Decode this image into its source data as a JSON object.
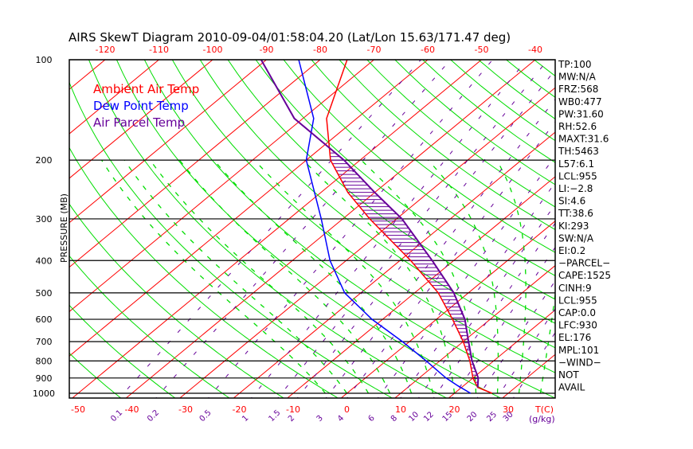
{
  "chart_data": {
    "type": "line",
    "title": "AIRS SkewT Diagram 2010-09-04/01:58:04.20 (Lat/Lon 15.63/171.47 deg)",
    "ylabel": "PRESSURE (MB)",
    "xlabel": "T(C)",
    "mixing_ratio_label": "(g/kg)",
    "pressure_ticks": [
      100,
      200,
      300,
      400,
      500,
      600,
      700,
      800,
      900,
      1000
    ],
    "top_temp_ticks": [
      -120,
      -110,
      -100,
      -90,
      -80,
      -70,
      -60,
      -50,
      -40
    ],
    "bottom_temp_ticks": [
      -50,
      -40,
      -30,
      -20,
      -10,
      0,
      10,
      20,
      30
    ],
    "mixing_ratio_ticks": [
      "0.1",
      "0.2",
      "0.5",
      "1",
      "1.5",
      "2",
      "3",
      "4",
      "6",
      "8",
      "10",
      "12",
      "15",
      "20",
      "25",
      "30"
    ],
    "ylim": [
      1000,
      100
    ],
    "legend": {
      "placement": "top-left",
      "entries": [
        {
          "name": "Ambient Air Temp",
          "color": "#ff0000"
        },
        {
          "name": "Dew Point Temp",
          "color": "#0000ff"
        },
        {
          "name": "Air Parcel Temp",
          "color": "#660099"
        }
      ]
    },
    "series": [
      {
        "name": "Ambient Air Temp",
        "color": "#ff0000",
        "p": [
          1000,
          960,
          900,
          800,
          700,
          600,
          500,
          400,
          300,
          250,
          200,
          150,
          100
        ],
        "t": [
          27,
          23,
          20,
          15.6,
          10,
          3,
          -5.6,
          -18,
          -35,
          -45,
          -55.5,
          -65.6,
          -75
        ]
      },
      {
        "name": "Dew Point Temp",
        "color": "#0000ff",
        "p": [
          1000,
          950,
          900,
          800,
          700,
          600,
          500,
          400,
          300,
          200,
          150,
          100
        ],
        "t": [
          23,
          19,
          15,
          7.5,
          -1.3,
          -12,
          -23,
          -33,
          -44,
          -60,
          -68,
          -84
        ]
      },
      {
        "name": "Air Parcel Temp",
        "color": "#660099",
        "p": [
          960,
          900,
          800,
          700,
          600,
          500,
          400,
          300,
          250,
          200,
          150,
          100
        ],
        "t": [
          23,
          21,
          16,
          11,
          5.3,
          -2.7,
          -14,
          -29,
          -40,
          -53,
          -71.6,
          -91
        ]
      }
    ]
  },
  "indices": [
    "TP:100",
    "MW:N/A",
    "FRZ:568",
    "WB0:477",
    "PW:31.60",
    "RH:52.6",
    "MAXT:31.6",
    "TH:5463",
    "L57:6.1",
    "LCL:955",
    "LI:−2.8",
    "SI:4.6",
    "TT:38.6",
    "KI:293",
    "SW:N/A",
    "EI:0.2",
    "−PARCEL−",
    "CAPE:1525",
    "CINH:9",
    "LCL:955",
    "CAP:0.0",
    "LFC:930",
    "EL:176",
    "MPL:101",
    "−WIND−",
    "NOT",
    "AVAIL"
  ],
  "colors": {
    "isotherm": "#ff0000",
    "dry_adiabat": "#00dd00",
    "moist_adiabat": "#00dd00",
    "mixing_ratio": "#660099",
    "isobar": "#000000"
  }
}
